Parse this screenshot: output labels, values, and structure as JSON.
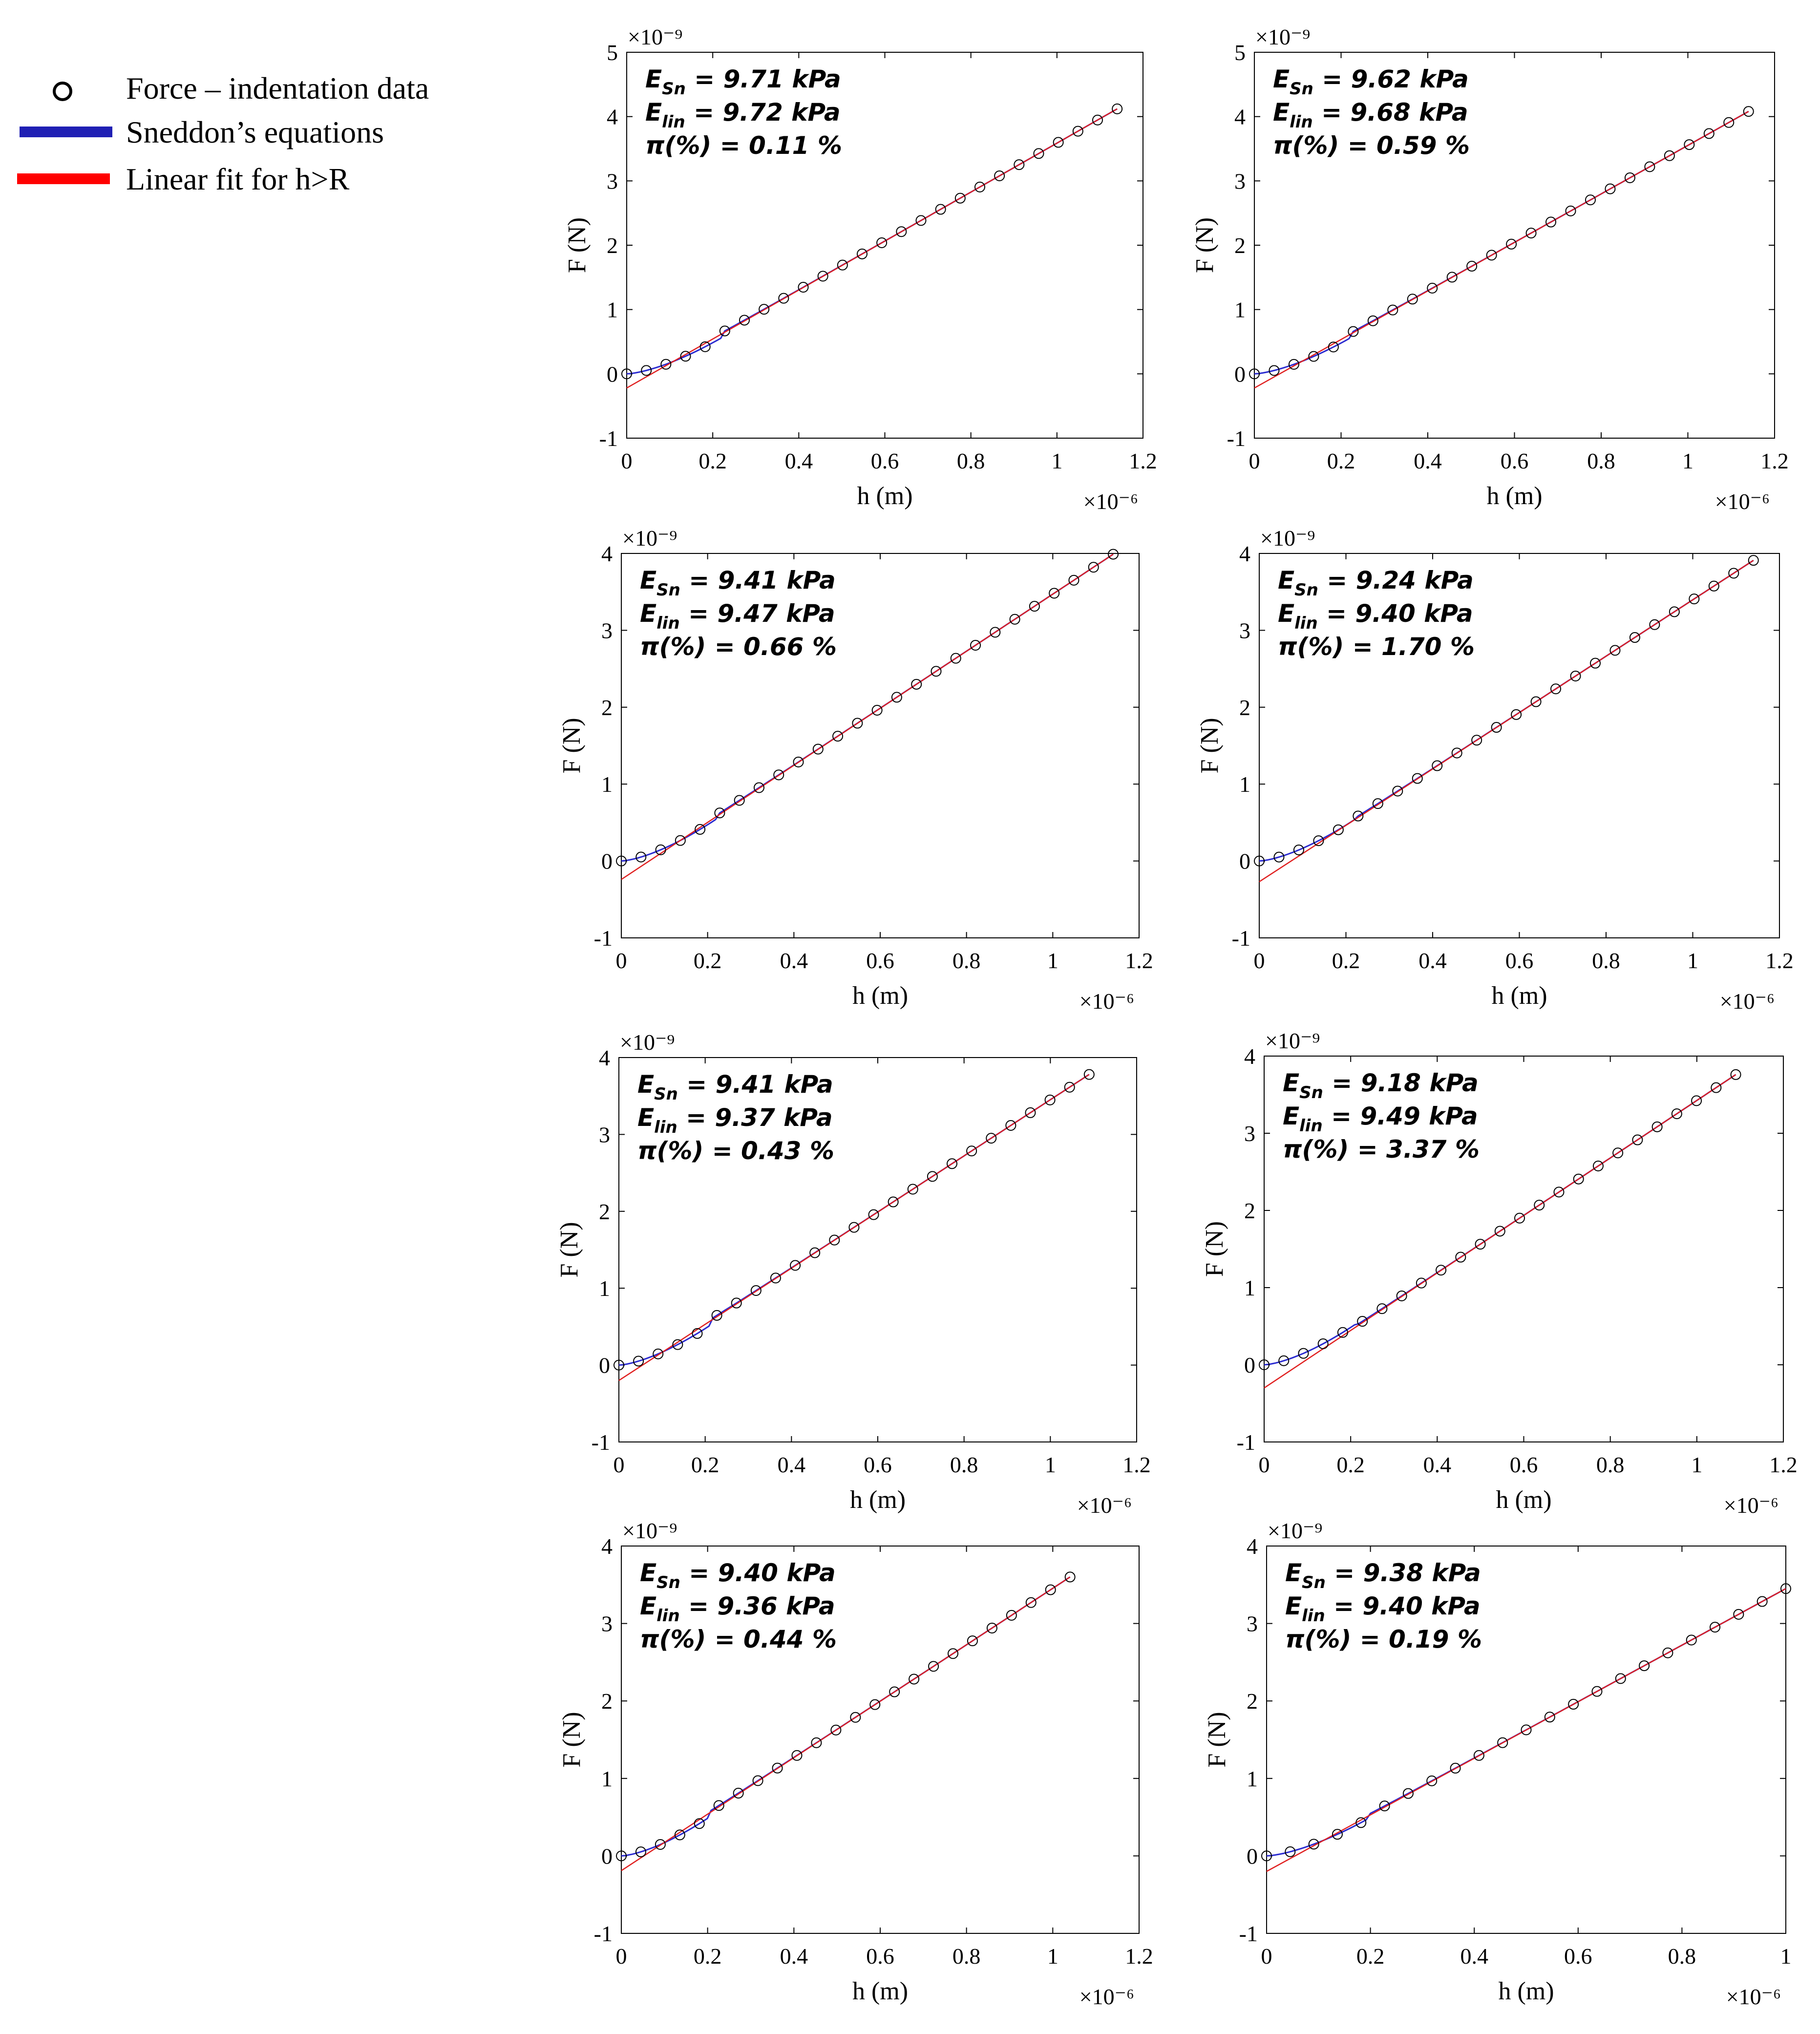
{
  "legend": {
    "items": [
      {
        "label": "Force – indentation data",
        "kind": "marker",
        "color": "#000000"
      },
      {
        "label": "Sneddon’s equations",
        "kind": "line",
        "color": "#1f1fb4"
      },
      {
        "label": "Linear fit for h>R",
        "kind": "line",
        "color": "#ff0000"
      }
    ]
  },
  "colors": {
    "data": "#000000",
    "sneddon": "#2b2bd0",
    "linear": "#e02020",
    "axis": "#000000"
  },
  "chart_data": [
    {
      "type": "line",
      "title": "",
      "xlabel": "h (m)",
      "ylabel": "F (N)",
      "xlim": [
        0,
        1.2
      ],
      "ylim": [
        -1,
        5
      ],
      "x_exponent": "×10⁻⁶",
      "y_exponent": "×10⁻⁹",
      "xticks": [
        "0",
        "0.2",
        "0.4",
        "0.6",
        "0.8",
        "1",
        "1.2"
      ],
      "yticks": [
        "-1",
        "0",
        "1",
        "2",
        "3",
        "4",
        "5"
      ],
      "annotation": {
        "E_sn": "9.71 kPa",
        "E_lin": "9.72 kPa",
        "pi": "0.11 %"
      },
      "data_points": {
        "x_max": 1.14,
        "y_max": 4.12,
        "n": 26
      },
      "linear_fit": {
        "intercept": -0.22,
        "x_range": [
          0,
          1.14
        ]
      }
    },
    {
      "type": "line",
      "title": "",
      "xlabel": "h (m)",
      "ylabel": "F (N)",
      "xlim": [
        0,
        1.2
      ],
      "ylim": [
        -1,
        5
      ],
      "x_exponent": "×10⁻⁶",
      "y_exponent": "×10⁻⁹",
      "xticks": [
        "0",
        "0.2",
        "0.4",
        "0.6",
        "0.8",
        "1",
        "1.2"
      ],
      "yticks": [
        "-1",
        "0",
        "1",
        "2",
        "3",
        "4",
        "5"
      ],
      "annotation": {
        "E_sn": "9.62 kPa",
        "E_lin": "9.68 kPa",
        "pi": "0.59 %"
      },
      "data_points": {
        "x_max": 1.14,
        "y_max": 4.08,
        "n": 26
      },
      "linear_fit": {
        "intercept": -0.22,
        "x_range": [
          0,
          1.14
        ]
      }
    },
    {
      "type": "line",
      "title": "",
      "xlabel": "h (m)",
      "ylabel": "F (N)",
      "xlim": [
        0,
        1.2
      ],
      "ylim": [
        -1,
        4
      ],
      "x_exponent": "×10⁻⁶",
      "y_exponent": "×10⁻⁹",
      "xticks": [
        "0",
        "0.2",
        "0.4",
        "0.6",
        "0.8",
        "1",
        "1.2"
      ],
      "yticks": [
        "-1",
        "0",
        "1",
        "2",
        "3",
        "4"
      ],
      "annotation": {
        "E_sn": "9.41 kPa",
        "E_lin": "9.47 kPa",
        "pi": "0.66 %"
      },
      "data_points": {
        "x_max": 1.14,
        "y_max": 3.99,
        "n": 26
      },
      "linear_fit": {
        "intercept": -0.24,
        "x_range": [
          0,
          1.14
        ]
      }
    },
    {
      "type": "line",
      "title": "",
      "xlabel": "h (m)",
      "ylabel": "F (N)",
      "xlim": [
        0,
        1.2
      ],
      "ylim": [
        -1,
        4
      ],
      "x_exponent": "×10⁻⁶",
      "y_exponent": "×10⁻⁹",
      "xticks": [
        "0",
        "0.2",
        "0.4",
        "0.6",
        "0.8",
        "1",
        "1.2"
      ],
      "yticks": [
        "-1",
        "0",
        "1",
        "2",
        "3",
        "4"
      ],
      "annotation": {
        "E_sn": "9.24 kPa",
        "E_lin": "9.40 kPa",
        "pi": "1.70 %"
      },
      "data_points": {
        "x_max": 1.14,
        "y_max": 3.91,
        "n": 26
      },
      "linear_fit": {
        "intercept": -0.27,
        "x_range": [
          0,
          1.14
        ]
      }
    },
    {
      "type": "line",
      "title": "",
      "xlabel": "h (m)",
      "ylabel": "F (N)",
      "xlim": [
        0,
        1.2
      ],
      "ylim": [
        -1,
        4
      ],
      "x_exponent": "×10⁻⁶",
      "y_exponent": "×10⁻⁹",
      "xticks": [
        "0",
        "0.2",
        "0.4",
        "0.6",
        "0.8",
        "1",
        "1.2"
      ],
      "yticks": [
        "-1",
        "0",
        "1",
        "2",
        "3",
        "4"
      ],
      "annotation": {
        "E_sn": "9.41 kPa",
        "E_lin": "9.37 kPa",
        "pi": "0.43 %"
      },
      "data_points": {
        "x_max": 1.09,
        "y_max": 3.78,
        "n": 25
      },
      "linear_fit": {
        "intercept": -0.2,
        "x_range": [
          0,
          1.09
        ]
      }
    },
    {
      "type": "line",
      "title": "",
      "xlabel": "h (m)",
      "ylabel": "F (N)",
      "xlim": [
        0,
        1.2
      ],
      "ylim": [
        -1,
        4
      ],
      "x_exponent": "×10⁻⁶",
      "y_exponent": "×10⁻⁹",
      "xticks": [
        "0",
        "0.2",
        "0.4",
        "0.6",
        "0.8",
        "1",
        "1.2"
      ],
      "yticks": [
        "-1",
        "0",
        "1",
        "2",
        "3",
        "4"
      ],
      "annotation": {
        "E_sn": "9.18 kPa",
        "E_lin": "9.49 kPa",
        "pi": "3.37 %"
      },
      "data_points": {
        "x_max": 1.09,
        "y_max": 3.76,
        "n": 25
      },
      "linear_fit": {
        "intercept": -0.3,
        "x_range": [
          0,
          1.09
        ]
      }
    },
    {
      "type": "line",
      "title": "",
      "xlabel": "h (m)",
      "ylabel": "F (N)",
      "xlim": [
        0,
        1.2
      ],
      "ylim": [
        -1,
        4
      ],
      "x_exponent": "×10⁻⁶",
      "y_exponent": "×10⁻⁹",
      "xticks": [
        "0",
        "0.2",
        "0.4",
        "0.6",
        "0.8",
        "1",
        "1.2"
      ],
      "yticks": [
        "-1",
        "0",
        "1",
        "2",
        "3",
        "4"
      ],
      "annotation": {
        "E_sn": "9.40 kPa",
        "E_lin": "9.36 kPa",
        "pi": "0.44 %"
      },
      "data_points": {
        "x_max": 1.04,
        "y_max": 3.6,
        "n": 24
      },
      "linear_fit": {
        "intercept": -0.19,
        "x_range": [
          0,
          1.04
        ]
      }
    },
    {
      "type": "line",
      "title": "",
      "xlabel": "h (m)",
      "ylabel": "F (N)",
      "xlim": [
        0,
        1.0
      ],
      "ylim": [
        -1,
        4
      ],
      "x_exponent": "×10⁻⁶",
      "y_exponent": "×10⁻⁹",
      "xticks": [
        "0",
        "0.2",
        "0.4",
        "0.6",
        "0.8",
        "1"
      ],
      "yticks": [
        "-1",
        "0",
        "1",
        "2",
        "3",
        "4"
      ],
      "annotation": {
        "E_sn": "9.38 kPa",
        "E_lin": "9.40 kPa",
        "pi": "0.19 %"
      },
      "data_points": {
        "x_max": 1.0,
        "y_max": 3.45,
        "n": 23
      },
      "linear_fit": {
        "intercept": -0.2,
        "x_range": [
          0,
          1.0
        ]
      }
    }
  ]
}
